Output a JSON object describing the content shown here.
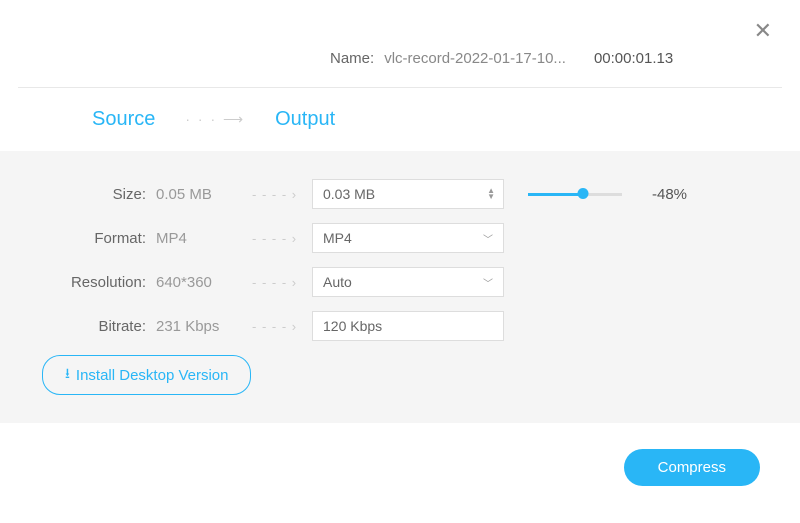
{
  "close_glyph": "✕",
  "header": {
    "name_label": "Name:",
    "filename": "vlc-record-2022-01-17-10...",
    "duration": "00:00:01.13"
  },
  "columns": {
    "source": "Source",
    "output": "Output",
    "arrow_glyph": "· · · ⟶"
  },
  "rows": {
    "sep_glyph": "- - - - ›",
    "size": {
      "label": "Size:",
      "source": "0.05 MB",
      "output": "0.03 MB",
      "slider_pct_fill": 58,
      "pct_text": "-48%"
    },
    "format": {
      "label": "Format:",
      "source": "MP4",
      "output": "MP4"
    },
    "resolution": {
      "label": "Resolution:",
      "source": "640*360",
      "output": "Auto"
    },
    "bitrate": {
      "label": "Bitrate:",
      "source": "231 Kbps",
      "output": "120 Kbps"
    }
  },
  "install_btn": "Install Desktop Version",
  "download_glyph": "⭳",
  "compress_btn": "Compress",
  "colors": {
    "accent": "#29b6f6",
    "panel_bg": "#f5f5f5",
    "border": "#dddddd",
    "text_muted": "#999999"
  }
}
